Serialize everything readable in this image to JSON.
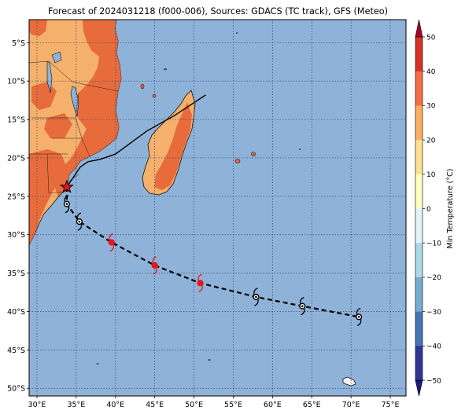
{
  "title": "Forecast of 2024031218 (f000-006), Sources: GDACS (TC track), GFS (Meteo)",
  "map": {
    "lon_range": [
      29,
      77
    ],
    "lat_range": [
      -51,
      -2
    ],
    "lon_ticks": [
      30,
      35,
      40,
      45,
      50,
      55,
      60,
      65,
      70,
      75
    ],
    "lon_labels": [
      "30°E",
      "35°E",
      "40°E",
      "45°E",
      "50°E",
      "55°E",
      "60°E",
      "65°E",
      "70°E",
      "75°E"
    ],
    "lat_ticks": [
      -5,
      -10,
      -15,
      -20,
      -25,
      -30,
      -35,
      -40,
      -45,
      -50
    ],
    "lat_labels": [
      "5°S",
      "10°S",
      "15°S",
      "20°S",
      "25°S",
      "30°S",
      "35°S",
      "40°S",
      "45°S",
      "50°S"
    ],
    "grid": true,
    "ocean_color": "#8fb2d8",
    "land_warm_color": "#f5b06b",
    "land_hot_color": "#e86b3c"
  },
  "colorbar": {
    "label": "Min Temperature (°C)",
    "ticks": [
      50,
      40,
      30,
      20,
      10,
      0,
      -10,
      -20,
      -30,
      -40,
      -50
    ],
    "tick_labels": [
      "50",
      "40",
      "30",
      "20",
      "10",
      "0",
      "−10",
      "−20",
      "−30",
      "−40",
      "−50"
    ],
    "colors": [
      "#a50026",
      "#d73027",
      "#f46d43",
      "#fdae61",
      "#fee090",
      "#ffffbf",
      "#e0f3f8",
      "#abd9e9",
      "#74add1",
      "#4575b4",
      "#313695",
      "#1a1a80"
    ]
  },
  "track": {
    "past_line": [
      [
        51.5,
        -11.8
      ],
      [
        47.5,
        -14.5
      ],
      [
        44.0,
        -16.5
      ],
      [
        40.0,
        -19.5
      ],
      [
        38.0,
        -20.2
      ],
      [
        36.5,
        -20.5
      ],
      [
        35.5,
        -21.2
      ],
      [
        33.8,
        -23.8
      ]
    ],
    "forecast_line": [
      [
        33.8,
        -23.8
      ],
      [
        33.8,
        -26.0
      ],
      [
        35.4,
        -28.3
      ],
      [
        39.5,
        -31.0
      ],
      [
        45.0,
        -34.0
      ],
      [
        50.8,
        -36.3
      ],
      [
        57.9,
        -38.1
      ],
      [
        63.8,
        -39.3
      ],
      [
        71.0,
        -40.7
      ]
    ],
    "current_position": [
      33.8,
      -23.8
    ],
    "forecast_points": [
      {
        "lon": 33.8,
        "lat": -26.0,
        "intensity": "low"
      },
      {
        "lon": 35.4,
        "lat": -28.3,
        "intensity": "low"
      },
      {
        "lon": 39.5,
        "lat": -31.0,
        "intensity": "storm"
      },
      {
        "lon": 45.0,
        "lat": -34.0,
        "intensity": "storm"
      },
      {
        "lon": 50.8,
        "lat": -36.3,
        "intensity": "storm"
      },
      {
        "lon": 57.9,
        "lat": -38.1,
        "intensity": "low"
      },
      {
        "lon": 63.8,
        "lat": -39.3,
        "intensity": "low"
      },
      {
        "lon": 71.0,
        "lat": -40.7,
        "intensity": "low"
      }
    ]
  }
}
